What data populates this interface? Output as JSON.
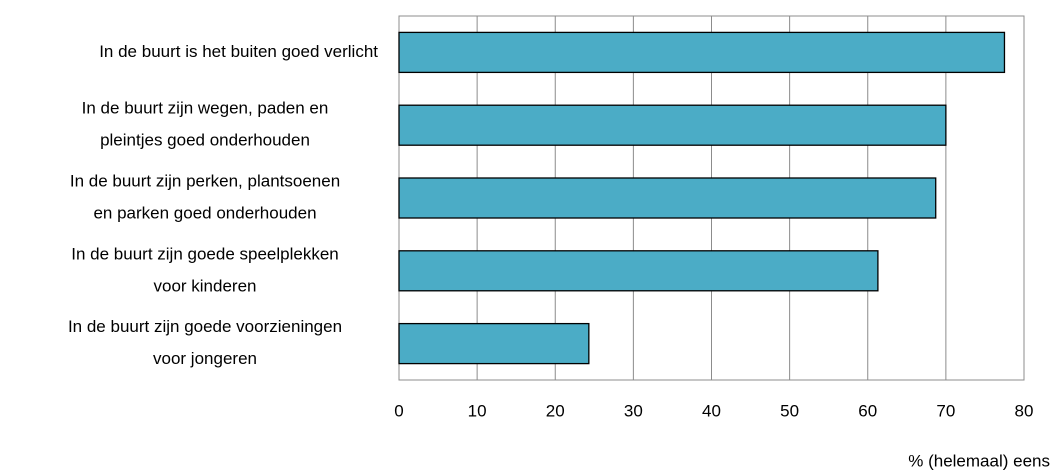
{
  "chart_data": {
    "type": "bar",
    "orientation": "horizontal",
    "categories": [
      [
        "In de buurt is het buiten goed verlicht"
      ],
      [
        "In de buurt zijn wegen, paden en",
        "pleintjes goed onderhouden"
      ],
      [
        "In de buurt zijn perken, plantsoenen",
        "en parken goed onderhouden"
      ],
      [
        "In de buurt zijn goede speelplekken",
        "voor kinderen"
      ],
      [
        "In de buurt zijn goede voorzieningen",
        "voor jongeren"
      ]
    ],
    "values": [
      77.5,
      70,
      68.7,
      61.3,
      24.3
    ],
    "color": "#4bacc6",
    "xlabel": "% (helemaal) eens",
    "xlim": [
      0,
      80
    ],
    "xticks": [
      0,
      10,
      20,
      30,
      40,
      50,
      60,
      70,
      80
    ],
    "grid": true
  }
}
